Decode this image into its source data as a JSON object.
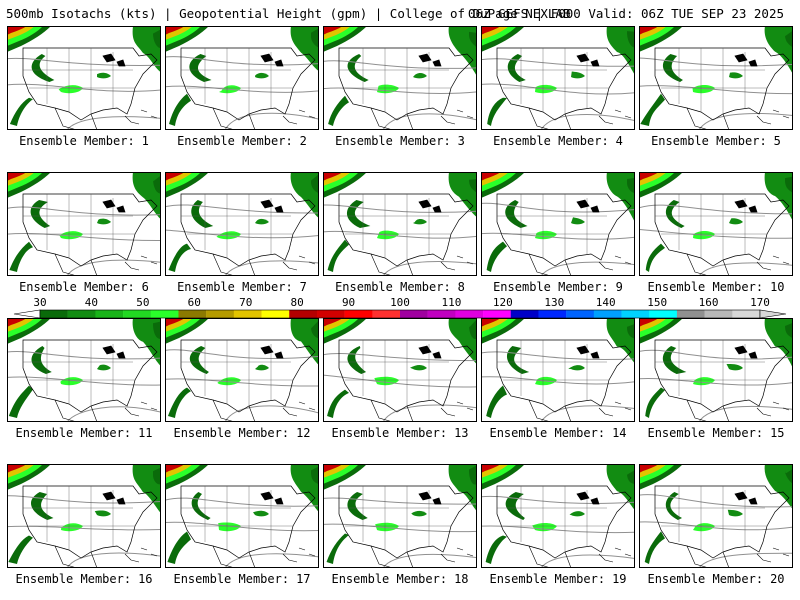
{
  "header": {
    "left": "500mb Isotachs (kts) | Geopotential Height (gpm) | College of DuPage NEXLAB",
    "right": "06Z GEFS | F000 Valid: 06Z TUE SEP 23 2025"
  },
  "members": [
    {
      "prefix": "Ensemble Member:",
      "number": "1"
    },
    {
      "prefix": "Ensemble Member:",
      "number": "2"
    },
    {
      "prefix": "Ensemble Member:",
      "number": "3"
    },
    {
      "prefix": "Ensemble Member:",
      "number": "4"
    },
    {
      "prefix": "Ensemble Member:",
      "number": "5"
    },
    {
      "prefix": "Ensemble Member:",
      "number": "6"
    },
    {
      "prefix": "Ensemble Member:",
      "number": "7"
    },
    {
      "prefix": "Ensemble Member:",
      "number": "8"
    },
    {
      "prefix": "Ensemble Member:",
      "number": "9"
    },
    {
      "prefix": "Ensemble Member:",
      "number": "10"
    },
    {
      "prefix": "Ensemble Member:",
      "number": "11"
    },
    {
      "prefix": "Ensemble Member:",
      "number": "12"
    },
    {
      "prefix": "Ensemble Member:",
      "number": "13"
    },
    {
      "prefix": "Ensemble Member:",
      "number": "14"
    },
    {
      "prefix": "Ensemble Member:",
      "number": "15"
    },
    {
      "prefix": "Ensemble Member:",
      "number": "16"
    },
    {
      "prefix": "Ensemble Member:",
      "number": "17"
    },
    {
      "prefix": "Ensemble Member:",
      "number": "18"
    },
    {
      "prefix": "Ensemble Member:",
      "number": "19"
    },
    {
      "prefix": "Ensemble Member:",
      "number": "20"
    }
  ],
  "colorbar": {
    "ticks": [
      "30",
      "40",
      "50",
      "60",
      "70",
      "80",
      "90",
      "100",
      "110",
      "120",
      "130",
      "140",
      "150",
      "160",
      "170"
    ],
    "colors": [
      "#0a6b0a",
      "#128c12",
      "#19b419",
      "#22d822",
      "#2aff2a",
      "#8c7a00",
      "#b59b00",
      "#e3c400",
      "#ffff00",
      "#b40000",
      "#d20000",
      "#ff0000",
      "#ff3030",
      "#a000a0",
      "#c000c0",
      "#e000e0",
      "#ff00ff",
      "#0000c8",
      "#0028ff",
      "#0064ff",
      "#00a0ff",
      "#00d2ff",
      "#00ffff",
      "#909090",
      "#b8b8b8",
      "#d8d8d8"
    ]
  },
  "map_colors": {
    "dark": "#0a6b0a",
    "med": "#128c12",
    "light": "#2aff2a",
    "yellow": "#e3c400",
    "red": "#c80000",
    "contour": "#909090",
    "borders": "#000000"
  }
}
